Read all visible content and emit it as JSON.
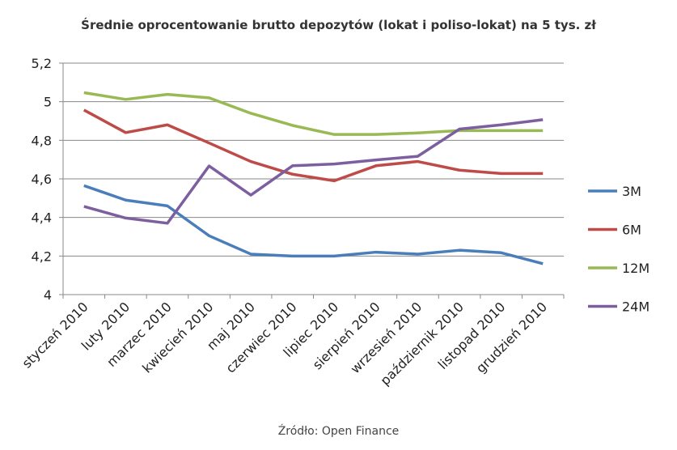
{
  "chart_data": {
    "type": "line",
    "title": "Średnie oprocentowanie brutto depozytów (lokat i poliso-lokat) na 5 tys. zł",
    "source": "Źródło: Open Finance",
    "xlabel": "",
    "ylabel": "",
    "ylim": [
      4,
      5.2
    ],
    "yticks": [
      "4",
      "4,2",
      "4,4",
      "4,6",
      "4,8",
      "5",
      "5,2"
    ],
    "ytick_values": [
      4,
      4.2,
      4.4,
      4.6,
      4.8,
      5,
      5.2
    ],
    "grid": true,
    "legend_position": "right",
    "categories": [
      "styczeń 2010",
      "luty 2010",
      "marzec 2010",
      "kwiecień 2010",
      "maj 2010",
      "czerwiec 2010",
      "lipiec 2010",
      "sierpień 2010",
      "wrzesień 2010",
      "październik 2010",
      "listopad 2010",
      "grudzień 2010"
    ],
    "series": [
      {
        "name": "3M",
        "color": "#4a7ebb",
        "values": [
          4.565,
          4.49,
          4.46,
          4.305,
          4.21,
          4.2,
          4.2,
          4.22,
          4.21,
          4.23,
          4.217,
          4.16
        ]
      },
      {
        "name": "6M",
        "color": "#be4b48",
        "values": [
          4.957,
          4.84,
          4.88,
          4.786,
          4.69,
          4.624,
          4.59,
          4.668,
          4.69,
          4.645,
          4.628,
          4.628
        ]
      },
      {
        "name": "12M",
        "color": "#98b954",
        "values": [
          5.047,
          5.012,
          5.038,
          5.02,
          4.94,
          4.877,
          4.83,
          4.83,
          4.838,
          4.85,
          4.85,
          4.85
        ]
      },
      {
        "name": "24M",
        "color": "#7d5fa0",
        "values": [
          4.457,
          4.397,
          4.37,
          4.667,
          4.516,
          4.668,
          4.677,
          4.698,
          4.717,
          4.858,
          4.88,
          4.907
        ]
      }
    ]
  }
}
